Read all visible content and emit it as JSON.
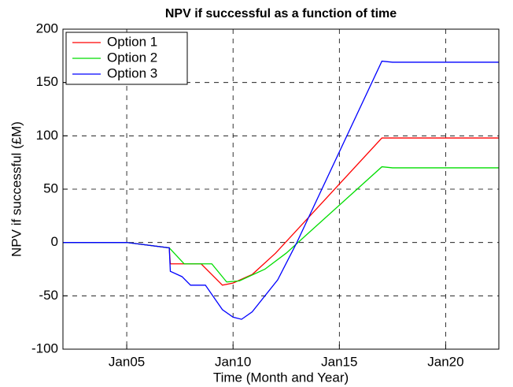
{
  "chart_data": {
    "type": "line",
    "title": "NPV if successful as a function of time",
    "x_label": "Time (Month and Year)",
    "y_label": "NPV if successful (£M)",
    "xlim": [
      2002,
      2022.5
    ],
    "xticks": [
      {
        "value": 2005,
        "label": "Jan05"
      },
      {
        "value": 2010,
        "label": "Jan10"
      },
      {
        "value": 2015,
        "label": "Jan15"
      },
      {
        "value": 2020,
        "label": "Jan20"
      }
    ],
    "ylim": [
      -100,
      200
    ],
    "yticks": [
      -100,
      -50,
      0,
      50,
      100,
      150,
      200
    ],
    "grid": true,
    "legend": "upper left",
    "series": [
      {
        "name": "Option 1",
        "color": "#ff0000",
        "x": [
          2002,
          2005,
          2007,
          2007.05,
          2008.5,
          2009.5,
          2010,
          2010.9,
          2012,
          2017,
          2022.5
        ],
        "values": [
          0,
          0,
          -5,
          -20,
          -20,
          -40,
          -38,
          -30,
          -10,
          98,
          98
        ]
      },
      {
        "name": "Option 2",
        "color": "#00dd00",
        "x": [
          2002,
          2005,
          2007,
          2007.7,
          2009,
          2009.7,
          2010.3,
          2011.5,
          2012.5,
          2017,
          2017.5,
          2022.5
        ],
        "values": [
          0,
          0,
          -5,
          -20,
          -20,
          -37,
          -36,
          -25,
          -10,
          71,
          70,
          70
        ]
      },
      {
        "name": "Option 3",
        "color": "#0000ff",
        "x": [
          2002,
          2005,
          2007,
          2007.05,
          2007.6,
          2008,
          2008.7,
          2009.5,
          2010,
          2010.4,
          2010.9,
          2012.1,
          2013,
          2017,
          2017.5,
          2022.5
        ],
        "values": [
          0,
          0,
          -5,
          -27,
          -32,
          -40,
          -40,
          -63,
          -70,
          -72,
          -65,
          -35,
          0,
          170,
          169,
          169
        ]
      }
    ]
  }
}
